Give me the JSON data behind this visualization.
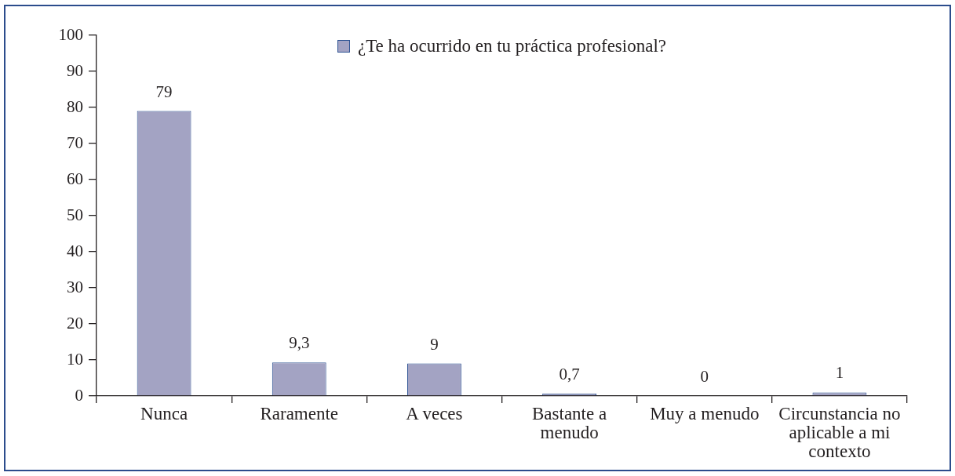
{
  "chart_data": {
    "type": "bar",
    "categories": [
      "Nunca",
      "Raramente",
      "A veces",
      "Bastante a menudo",
      "Muy a menudo",
      "Circunstancia no aplicable a mi contexto"
    ],
    "series": [
      {
        "name": "¿Te ha ocurrido en tu práctica profesional?",
        "color": "#a3a3c3",
        "values": [
          79,
          9.3,
          9,
          0.7,
          0,
          1
        ],
        "value_labels": [
          "79",
          "9,3",
          "9",
          "0,7",
          "0",
          "1"
        ]
      }
    ],
    "ylim": [
      0,
      100
    ],
    "yticks": [
      0,
      10,
      20,
      30,
      40,
      50,
      60,
      70,
      80,
      90,
      100
    ],
    "grid": false,
    "legend": "top"
  }
}
